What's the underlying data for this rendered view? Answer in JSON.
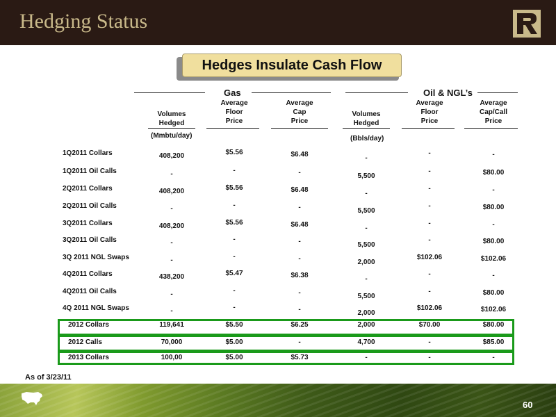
{
  "header": {
    "title": "Hedging Status"
  },
  "banner": {
    "text": "Hedges Insulate Cash Flow"
  },
  "groups": {
    "gas": "Gas",
    "oil": "Oil & NGL’s"
  },
  "columns": {
    "gas_volumes": "Volumes\nHedged",
    "gas_floor": "Average\nFloor\nPrice",
    "gas_cap": "Average\nCap\nPrice",
    "oil_volumes": "Volumes\nHedged",
    "oil_floor": "Average\nFloor\nPrice",
    "oil_cap": "Average\nCap/Call\nPrice"
  },
  "units": {
    "gas": "(Mmbtu/day)",
    "oil": "(Bbls/day)"
  },
  "rows": [
    {
      "label": "1Q2011 Collars",
      "values": [
        "408,200",
        "$5.56",
        "$6.48",
        "-",
        "-",
        "-"
      ]
    },
    {
      "label": "1Q2011 Oil Calls",
      "values": [
        "-",
        "-",
        "-",
        "5,500",
        "-",
        "$80.00"
      ]
    },
    {
      "label": "2Q2011 Collars",
      "values": [
        "408,200",
        "$5.56",
        "$6.48",
        "-",
        "-",
        "-"
      ]
    },
    {
      "label": "2Q2011 Oil Calls",
      "values": [
        "-",
        "-",
        "-",
        "5,500",
        "-",
        "$80.00"
      ]
    },
    {
      "label": "3Q2011 Collars",
      "values": [
        "408,200",
        "$5.56",
        "$6.48",
        "-",
        "-",
        "-"
      ]
    },
    {
      "label": "3Q2011 Oil Calls",
      "values": [
        "-",
        "-",
        "-",
        "5,500",
        "-",
        "$80.00"
      ]
    },
    {
      "label": "3Q 2011 NGL Swaps",
      "values": [
        "-",
        "-",
        "-",
        "2,000",
        "$102.06",
        "$102.06"
      ]
    },
    {
      "label": "4Q2011 Collars",
      "values": [
        "438,200",
        "$5.47",
        "$6.38",
        "-",
        "-",
        "-"
      ]
    },
    {
      "label": "4Q2011 Oil Calls",
      "values": [
        "-",
        "-",
        "-",
        "5,500",
        "-",
        "$80.00"
      ]
    },
    {
      "label": "4Q 2011 NGL Swaps",
      "values": [
        "-",
        "-",
        "-",
        "2,000",
        "$102.06",
        "$102.06"
      ]
    },
    {
      "label": "2012 Collars",
      "values": [
        "119,641",
        "$5.50",
        "$6.25",
        "2,000",
        "$70.00",
        "$80.00"
      ]
    },
    {
      "label": "2012 Calls",
      "values": [
        "70,000",
        "$5.00",
        "-",
        "4,700",
        "-",
        "$85.00"
      ]
    },
    {
      "label": "2013 Collars",
      "values": [
        "100,00",
        "$5.00",
        "$5.73",
        "-",
        "-",
        "-"
      ]
    }
  ],
  "as_of": "As of 3/23/11",
  "footer": {
    "page_number": "60"
  },
  "colors": {
    "header_bg": "#2a1a14",
    "title": "#c9b98a",
    "banner_bg": "#f0df9e",
    "highlight_border": "#1a9a1a"
  },
  "icons": {
    "logo": "r-logo-icon",
    "footer": "us-map-icon"
  }
}
